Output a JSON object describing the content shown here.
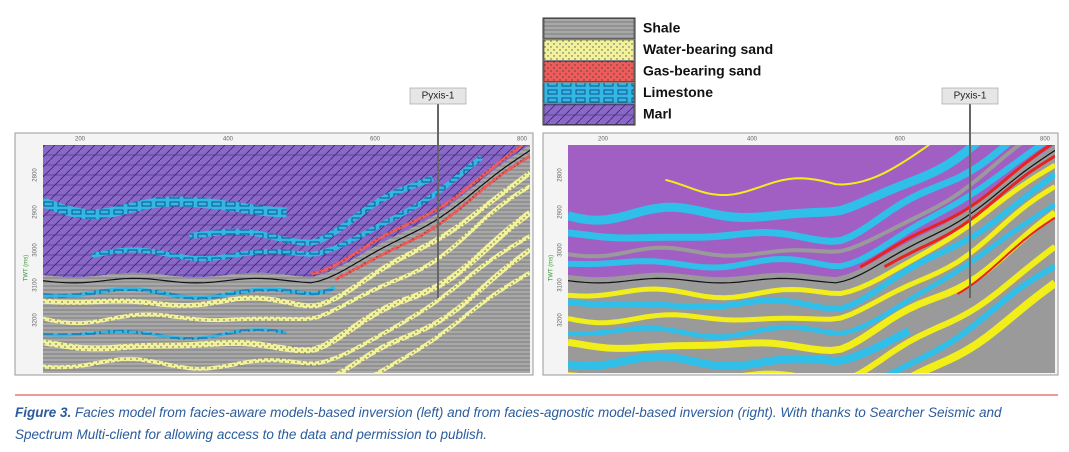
{
  "legend": {
    "items": [
      "Shale",
      "Water-bearing sand",
      "Gas-bearing sand",
      "Limestone",
      "Marl"
    ]
  },
  "panels": [
    {
      "well": "Pyxis-1",
      "x_ticks": [
        "200",
        "400",
        "600",
        "800"
      ],
      "y_ticks": [
        "2800",
        "2900",
        "3000",
        "3100",
        "3200"
      ],
      "y_label": "TWT (ms)"
    },
    {
      "well": "Pyxis-1",
      "x_ticks": [
        "200",
        "400",
        "600",
        "800"
      ],
      "y_ticks": [
        "2800",
        "2900",
        "3000",
        "3100",
        "3200"
      ],
      "y_label": "TWT (ms)"
    }
  ],
  "caption": {
    "label": "Figure 3.",
    "text": "Facies model from facies-aware models-based inversion (left) and from facies-agnostic model-based inversion (right). With thanks to Searcher Seismic and Spectrum Multi-client for allowing access to the data and permission to publish."
  }
}
